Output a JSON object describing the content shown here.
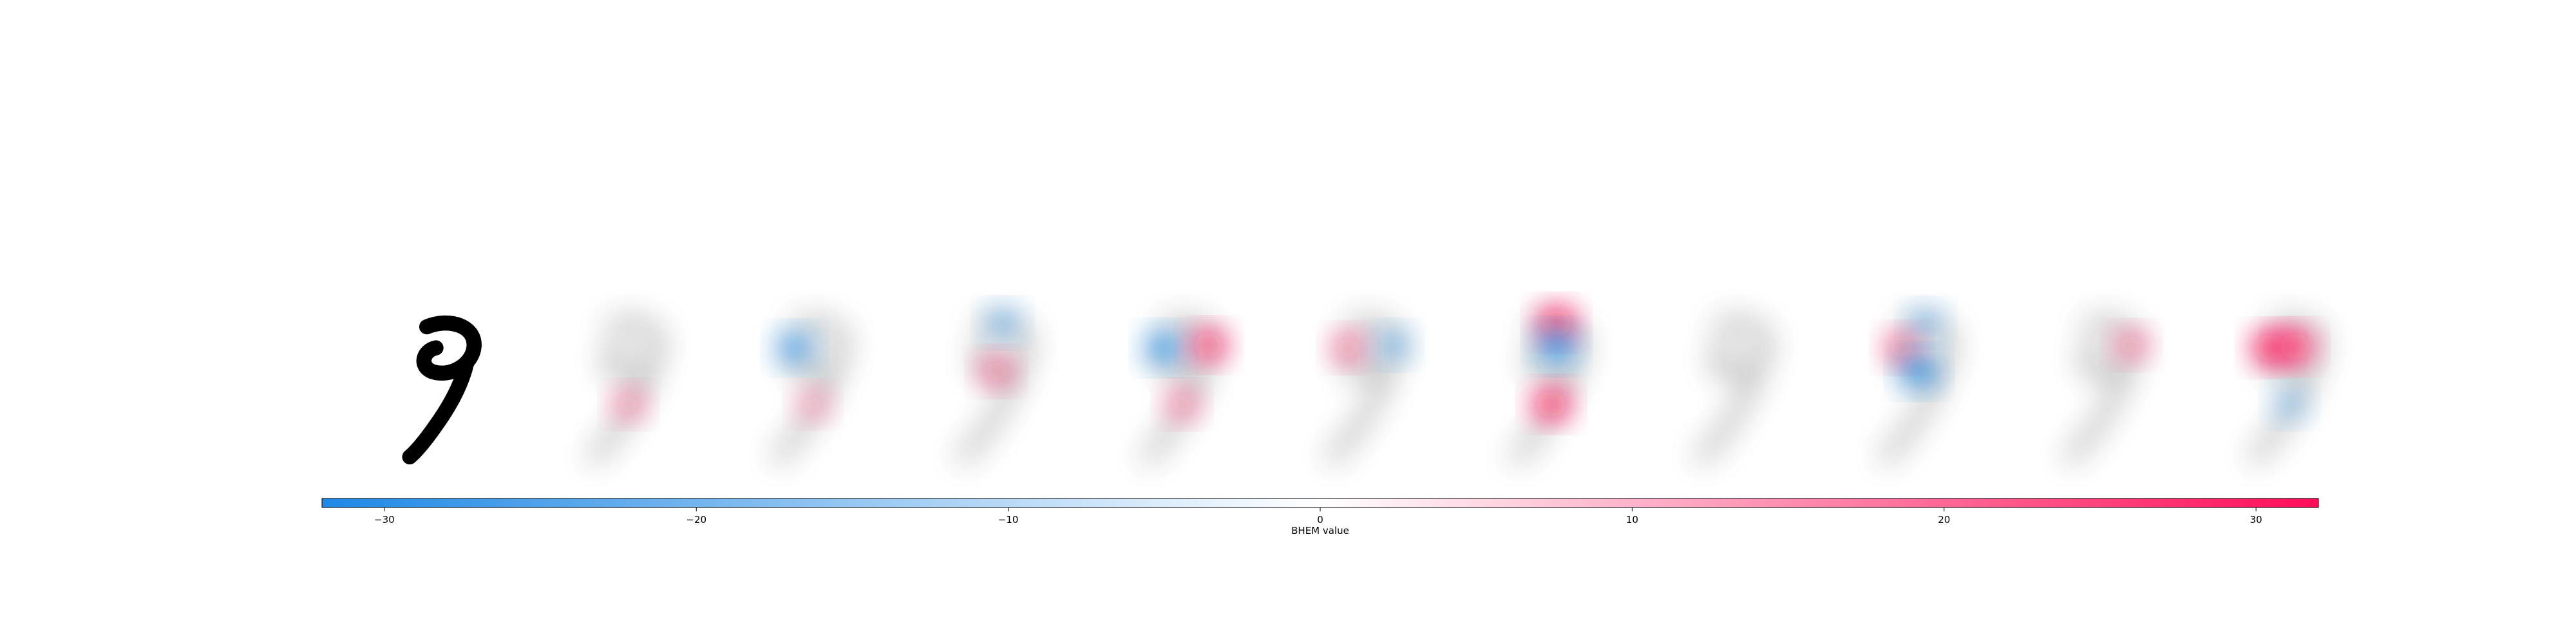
{
  "chart_data": {
    "type": "heatmap",
    "panel_count": 11,
    "panels": [
      {
        "kind": "input"
      },
      {
        "kind": "attribution",
        "regions": [
          {
            "color": "red",
            "strength": 0.35,
            "spot": "stem"
          }
        ]
      },
      {
        "kind": "attribution",
        "regions": [
          {
            "color": "blue",
            "strength": 0.75,
            "spot": "loop-left"
          },
          {
            "color": "red",
            "strength": 0.25,
            "spot": "stem"
          }
        ]
      },
      {
        "kind": "attribution",
        "regions": [
          {
            "color": "blue",
            "strength": 0.45,
            "spot": "loop-top"
          },
          {
            "color": "red",
            "strength": 0.45,
            "spot": "loop-bottom"
          }
        ]
      },
      {
        "kind": "attribution",
        "regions": [
          {
            "color": "blue",
            "strength": 0.85,
            "spot": "loop-left"
          },
          {
            "color": "red",
            "strength": 0.8,
            "spot": "loop-right"
          },
          {
            "color": "red",
            "strength": 0.4,
            "spot": "stem"
          }
        ]
      },
      {
        "kind": "attribution",
        "regions": [
          {
            "color": "red",
            "strength": 0.45,
            "spot": "loop-left"
          },
          {
            "color": "blue",
            "strength": 0.45,
            "spot": "loop-right"
          }
        ]
      },
      {
        "kind": "attribution",
        "regions": [
          {
            "color": "red",
            "strength": 0.95,
            "spot": "loop-top"
          },
          {
            "color": "blue",
            "strength": 0.95,
            "spot": "loop-center"
          },
          {
            "color": "red",
            "strength": 0.9,
            "spot": "stem"
          }
        ]
      },
      {
        "kind": "attribution",
        "regions": []
      },
      {
        "kind": "attribution",
        "regions": [
          {
            "color": "red",
            "strength": 0.55,
            "spot": "loop-left"
          },
          {
            "color": "blue",
            "strength": 0.9,
            "spot": "loop-bottom"
          },
          {
            "color": "blue",
            "strength": 0.4,
            "spot": "loop-top"
          }
        ]
      },
      {
        "kind": "attribution",
        "regions": [
          {
            "color": "red",
            "strength": 0.4,
            "spot": "loop-right"
          }
        ]
      },
      {
        "kind": "attribution",
        "regions": [
          {
            "color": "red",
            "strength": 1.0,
            "spot": "loop-left"
          },
          {
            "color": "red",
            "strength": 0.9,
            "spot": "loop-center"
          },
          {
            "color": "blue",
            "strength": 0.35,
            "spot": "stem"
          }
        ]
      }
    ],
    "colorbar": {
      "range": [
        -32,
        32
      ],
      "ticks": [
        -30,
        -20,
        -10,
        0,
        10,
        20,
        30
      ],
      "tick_labels": [
        "−30",
        "−20",
        "−10",
        "0",
        "10",
        "20",
        "30"
      ],
      "label": "BHEM value",
      "colors": {
        "negative": "#1e88e5",
        "center": "#ffffff",
        "positive": "#ff0d57"
      }
    }
  }
}
